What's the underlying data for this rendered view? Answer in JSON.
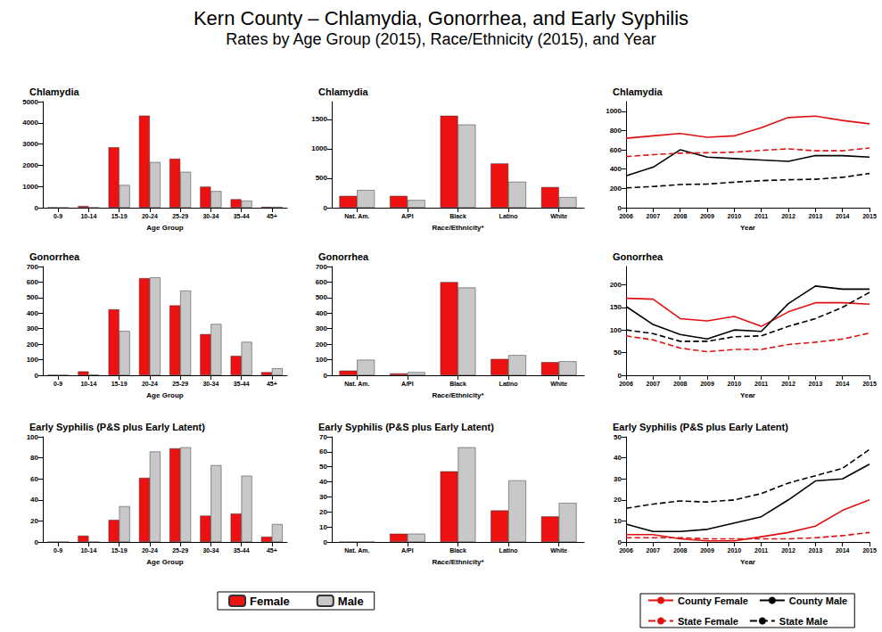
{
  "title": "Kern County – Chlamydia, Gonorrhea, and Early Syphilis",
  "subtitle": "Rates by Age Group (2015), Race/Ethnicity (2015), and Year",
  "chart_data": [
    {
      "type": "bar",
      "title": "Chlamydia",
      "xlabel": "Age Group",
      "categories": [
        "0-9",
        "10-14",
        "15-19",
        "20-24",
        "25-29",
        "30-34",
        "35-44",
        "45+"
      ],
      "series": [
        {
          "name": "Female",
          "color": "#ee1111",
          "values": [
            10,
            80,
            2850,
            4340,
            2310,
            990,
            400,
            40
          ]
        },
        {
          "name": "Male",
          "color": "#c8c8c8",
          "values": [
            5,
            5,
            1070,
            2150,
            1690,
            780,
            330,
            40
          ]
        }
      ],
      "ylim": [
        0,
        5000
      ],
      "yticks": [
        0,
        1000,
        2000,
        3000,
        4000,
        5000
      ]
    },
    {
      "type": "bar",
      "title": "Chlamydia",
      "xlabel": "Race/Ethnicity*",
      "categories": [
        "Nat. Am.",
        "A/PI",
        "Black",
        "Latino",
        "White"
      ],
      "series": [
        {
          "name": "Female",
          "color": "#ee1111",
          "values": [
            200,
            200,
            1560,
            750,
            350
          ]
        },
        {
          "name": "Male",
          "color": "#c8c8c8",
          "values": [
            300,
            130,
            1410,
            440,
            180
          ]
        }
      ],
      "ylim": [
        0,
        1800
      ],
      "yticks": [
        0,
        500,
        1000,
        1500
      ]
    },
    {
      "type": "line",
      "title": "Chlamydia",
      "xlabel": "Year",
      "categories": [
        "2006",
        "2007",
        "2008",
        "2009",
        "2010",
        "2011",
        "2012",
        "2013",
        "2014",
        "2015"
      ],
      "series": [
        {
          "name": "County Female",
          "color": "#e01010",
          "line_style": "solid",
          "values": [
            720,
            745,
            770,
            730,
            745,
            830,
            935,
            950,
            905,
            870
          ]
        },
        {
          "name": "County Male",
          "color": "#000000",
          "line_style": "solid",
          "values": [
            330,
            420,
            600,
            525,
            510,
            495,
            480,
            540,
            540,
            525
          ]
        },
        {
          "name": "State Female",
          "color": "#e01010",
          "line_style": "dashed",
          "values": [
            530,
            550,
            565,
            570,
            575,
            595,
            610,
            590,
            590,
            620
          ]
        },
        {
          "name": "State Male",
          "color": "#000000",
          "line_style": "dashed",
          "values": [
            205,
            220,
            240,
            245,
            265,
            280,
            290,
            295,
            315,
            355
          ]
        }
      ],
      "ylim": [
        0,
        1100
      ],
      "yticks": [
        0,
        200,
        400,
        600,
        800,
        1000
      ]
    },
    {
      "type": "bar",
      "title": "Gonorrhea",
      "xlabel": "Age Group",
      "categories": [
        "0-9",
        "10-14",
        "15-19",
        "20-24",
        "25-29",
        "30-34",
        "35-44",
        "45+"
      ],
      "series": [
        {
          "name": "Female",
          "color": "#ee1111",
          "values": [
            2,
            25,
            425,
            625,
            450,
            265,
            125,
            20
          ]
        },
        {
          "name": "Male",
          "color": "#c8c8c8",
          "values": [
            1,
            3,
            285,
            630,
            545,
            330,
            215,
            45
          ]
        }
      ],
      "ylim": [
        0,
        700
      ],
      "yticks": [
        0,
        100,
        200,
        300,
        400,
        500,
        600,
        700
      ]
    },
    {
      "type": "bar",
      "title": "Gonorrhea",
      "xlabel": "Race/Ethnicity*",
      "categories": [
        "Nat. Am.",
        "A/PI",
        "Black",
        "Latino",
        "White"
      ],
      "series": [
        {
          "name": "Female",
          "color": "#ee1111",
          "values": [
            30,
            12,
            600,
            105,
            85
          ]
        },
        {
          "name": "Male",
          "color": "#c8c8c8",
          "values": [
            100,
            20,
            565,
            130,
            90
          ]
        }
      ],
      "ylim": [
        0,
        700
      ],
      "yticks": [
        0,
        100,
        200,
        300,
        400,
        500,
        600,
        700
      ]
    },
    {
      "type": "line",
      "title": "Gonorrhea",
      "xlabel": "Year",
      "categories": [
        "2006",
        "2007",
        "2008",
        "2009",
        "2010",
        "2011",
        "2012",
        "2013",
        "2014",
        "2015"
      ],
      "series": [
        {
          "name": "County Female",
          "color": "#e01010",
          "line_style": "solid",
          "values": [
            170,
            168,
            125,
            120,
            130,
            108,
            140,
            160,
            160,
            157
          ]
        },
        {
          "name": "County Male",
          "color": "#000000",
          "line_style": "solid",
          "values": [
            152,
            112,
            90,
            80,
            100,
            97,
            158,
            197,
            190,
            190
          ]
        },
        {
          "name": "State Female",
          "color": "#e01010",
          "line_style": "dashed",
          "values": [
            87,
            78,
            60,
            52,
            57,
            57,
            68,
            73,
            80,
            93
          ]
        },
        {
          "name": "State Male",
          "color": "#000000",
          "line_style": "dashed",
          "values": [
            100,
            92,
            75,
            75,
            85,
            87,
            108,
            125,
            150,
            183
          ]
        }
      ],
      "ylim": [
        0,
        240
      ],
      "yticks": [
        0,
        50,
        100,
        150,
        200
      ]
    },
    {
      "type": "bar",
      "title": "Early Syphilis (P&S plus Early Latent)",
      "xlabel": "Age Group",
      "categories": [
        "0-9",
        "10-14",
        "15-19",
        "20-24",
        "25-29",
        "30-34",
        "35-44",
        "45+"
      ],
      "series": [
        {
          "name": "Female",
          "color": "#ee1111",
          "values": [
            0,
            6,
            21,
            61,
            89,
            25,
            27,
            5
          ]
        },
        {
          "name": "Male",
          "color": "#c8c8c8",
          "values": [
            0,
            0,
            34,
            86,
            90,
            73,
            63,
            17
          ]
        }
      ],
      "ylim": [
        0,
        100
      ],
      "yticks": [
        0,
        20,
        40,
        60,
        80,
        100
      ]
    },
    {
      "type": "bar",
      "title": "Early Syphilis (P&S plus Early Latent)",
      "xlabel": "Race/Ethnicity*",
      "categories": [
        "Nat. Am.",
        "A/PI",
        "Black",
        "Latino",
        "White"
      ],
      "series": [
        {
          "name": "Female",
          "color": "#ee1111",
          "values": [
            0,
            5.5,
            47,
            21,
            17
          ]
        },
        {
          "name": "Male",
          "color": "#c8c8c8",
          "values": [
            0,
            5.5,
            63,
            41,
            26
          ]
        }
      ],
      "ylim": [
        0,
        70
      ],
      "yticks": [
        0,
        10,
        20,
        30,
        40,
        50,
        60,
        70
      ]
    },
    {
      "type": "line",
      "title": "Early Syphilis (P&S plus Early Latent)",
      "xlabel": "Year",
      "categories": [
        "2006",
        "2007",
        "2008",
        "2009",
        "2010",
        "2011",
        "2012",
        "2013",
        "2014",
        "2015"
      ],
      "series": [
        {
          "name": "County Female",
          "color": "#e01010",
          "line_style": "solid",
          "values": [
            3.5,
            3.5,
            1.5,
            0.5,
            0.5,
            2.5,
            4.5,
            7.5,
            15,
            20
          ]
        },
        {
          "name": "County Male",
          "color": "#000000",
          "line_style": "solid",
          "values": [
            8.5,
            5,
            5,
            6,
            9,
            12,
            20,
            29,
            30,
            37
          ]
        },
        {
          "name": "State Female",
          "color": "#e01010",
          "line_style": "dashed",
          "values": [
            2,
            2,
            2,
            1.5,
            1.5,
            1.5,
            1.5,
            2,
            3,
            4.5
          ]
        },
        {
          "name": "State Male",
          "color": "#000000",
          "line_style": "dashed",
          "values": [
            16,
            18,
            19.5,
            19,
            20,
            23,
            28,
            31.5,
            35,
            44
          ]
        }
      ],
      "ylim": [
        0,
        50
      ],
      "yticks": [
        0,
        10,
        20,
        30,
        40,
        50
      ]
    }
  ]
}
